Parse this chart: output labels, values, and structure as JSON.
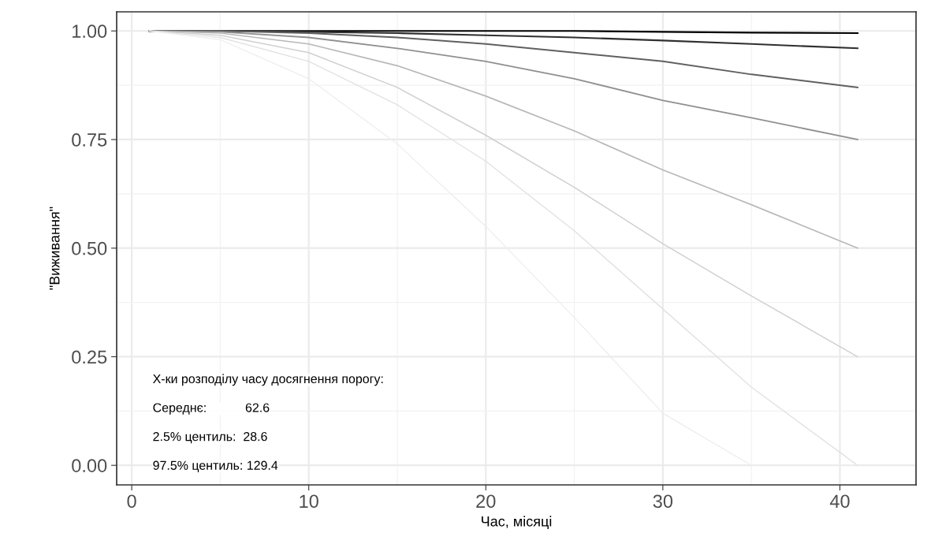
{
  "chart_data": {
    "type": "line",
    "xlabel": "Час, місяці",
    "ylabel": "\"Виживання\"",
    "x": [
      1,
      5,
      10,
      15,
      20,
      25,
      30,
      35,
      41
    ],
    "series": [
      {
        "color": "#000000",
        "values": [
          1.0,
          1.0,
          1.0,
          1.0,
          1.0,
          1.0,
          0.998,
          0.996,
          0.995
        ]
      },
      {
        "color": "#303030",
        "values": [
          1.0,
          1.0,
          0.998,
          0.995,
          0.99,
          0.985,
          0.978,
          0.97,
          0.96
        ]
      },
      {
        "color": "#606060",
        "values": [
          1.0,
          1.0,
          0.995,
          0.985,
          0.97,
          0.95,
          0.93,
          0.9,
          0.87
        ]
      },
      {
        "color": "#909090",
        "values": [
          1.0,
          0.998,
          0.985,
          0.96,
          0.93,
          0.89,
          0.84,
          0.8,
          0.75
        ]
      },
      {
        "color": "#b8b8b8",
        "values": [
          1.0,
          0.995,
          0.97,
          0.92,
          0.85,
          0.77,
          0.68,
          0.6,
          0.5
        ]
      },
      {
        "color": "#d0d0d0",
        "values": [
          1.0,
          0.99,
          0.95,
          0.87,
          0.76,
          0.64,
          0.51,
          0.39,
          0.25
        ]
      },
      {
        "color": "#e2e2e2",
        "values": [
          1.0,
          0.985,
          0.93,
          0.83,
          0.7,
          0.54,
          0.36,
          0.18,
          0.0
        ]
      },
      {
        "color": "#ededed",
        "values": [
          1.0,
          0.98,
          0.89,
          0.74,
          0.55,
          0.34,
          0.12,
          0.0,
          0.0
        ]
      }
    ],
    "xlim": [
      -0.85,
      44.3
    ],
    "ylim": [
      -0.045,
      1.044
    ],
    "xticks": [
      0,
      {
        "value": 5,
        "label": null
      },
      10,
      {
        "value": 15,
        "label": null
      },
      20,
      {
        "value": 25,
        "label": null
      },
      30,
      {
        "value": 35,
        "label": null
      },
      40
    ],
    "yticks": [
      {
        "value": 0,
        "label": "0.00"
      },
      {
        "value": 0.125,
        "label": null
      },
      {
        "value": 0.25,
        "label": "0.25"
      },
      {
        "value": 0.375,
        "label": null
      },
      {
        "value": 0.5,
        "label": "0.50"
      },
      {
        "value": 0.625,
        "label": null
      },
      {
        "value": 0.75,
        "label": "0.75"
      },
      {
        "value": 0.875,
        "label": null
      },
      {
        "value": 1.0,
        "label": "1.00"
      }
    ],
    "grid": true,
    "legend": false,
    "annotations": [
      "Х-ки розподілу часу досягнення порогу:",
      "Середнє:           62.6",
      "2.5% центиль:  28.6",
      "97.5% центиль: 129.4"
    ]
  }
}
